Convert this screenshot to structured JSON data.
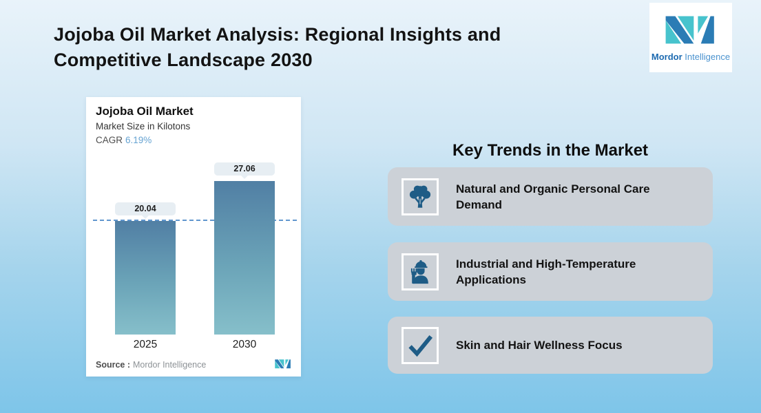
{
  "header": {
    "title_line1": "Jojoba Oil Market Analysis: Regional Insights and",
    "title_line2": "Competitive Landscape 2030",
    "logo": {
      "brand_bold": "Mordor",
      "brand_regular": " Intelligence"
    }
  },
  "chart_card": {
    "title": "Jojoba Oil Market",
    "subtitle": "Market Size in Kilotons",
    "cagr_label": "CAGR",
    "cagr_value": "6.19%",
    "source_label": "Source :",
    "source_value": "Mordor Intelligence"
  },
  "chart_data": {
    "type": "bar",
    "title": "Jojoba Oil Market",
    "subtitle": "Market Size in Kilotons",
    "cagr": "6.19%",
    "categories": [
      "2025",
      "2030"
    ],
    "values": [
      20.04,
      27.06
    ],
    "value_labels": [
      "20.04",
      "27.06"
    ],
    "ylabel": "Market Size in Kilotons",
    "ylim": [
      0,
      30
    ],
    "grid": false,
    "reference_line_value": 20.04,
    "bar_gradient": [
      "#517fa4",
      "#86bfca"
    ],
    "reference_line_color": "#6096ce",
    "source": "Mordor Intelligence"
  },
  "key_trends": {
    "heading": "Key Trends in the Market",
    "items": [
      {
        "icon": "tree-icon",
        "label": "Natural and Organic Personal Care Demand"
      },
      {
        "icon": "worker-icon",
        "label": "Industrial and High-Temperature Applications"
      },
      {
        "icon": "checkmark-icon",
        "label": "Skin and Hair Wellness Focus"
      }
    ]
  },
  "colors": {
    "background_top": "#e9f3fa",
    "background_bottom": "#7ec5e9",
    "card_white": "#ffffff",
    "trend_card_gray": "#ccd1d7",
    "icon_blue": "#1e5c86",
    "logo_teal": "#47c3cd",
    "logo_blue": "#2b7cb5",
    "cagr_value_blue": "#66a3d2",
    "value_label_bg": "#e7eef3"
  }
}
